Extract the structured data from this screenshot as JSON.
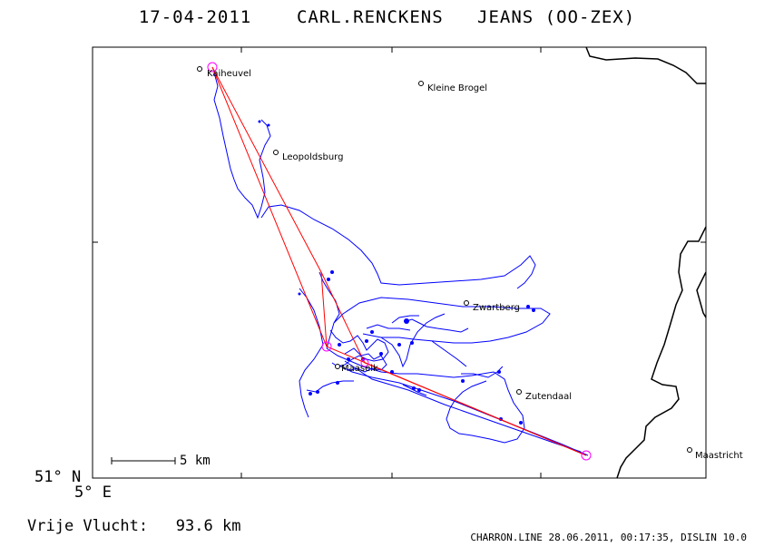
{
  "header": {
    "date": "17-04-2011",
    "pilot": "CARL.RENCKENS",
    "glider": "JEANS (OO-ZEX)"
  },
  "map": {
    "towns": [
      {
        "name": "Kaiheuvel"
      },
      {
        "name": "Kleine Brogel"
      },
      {
        "name": "Leopoldsburg"
      },
      {
        "name": "Zwartberg"
      },
      {
        "name": "Maaseik"
      },
      {
        "name": "Zutendaal"
      },
      {
        "name": "Maastricht"
      }
    ],
    "scale_label": "5 km",
    "track_color": "#0000ff",
    "task_color": "#ff0000",
    "turnpoint_color": "#ff00ff",
    "border_color": "#000000"
  },
  "coordinates": {
    "lat_label": "51° N",
    "lon_label": "5° E"
  },
  "stats": {
    "distance_label": "Vrije Vlucht:",
    "distance_value": "93.6 km"
  },
  "footer": {
    "text": "CHARRON.LINE 28.06.2011, 00:17:35, DISLIN 10.0"
  }
}
